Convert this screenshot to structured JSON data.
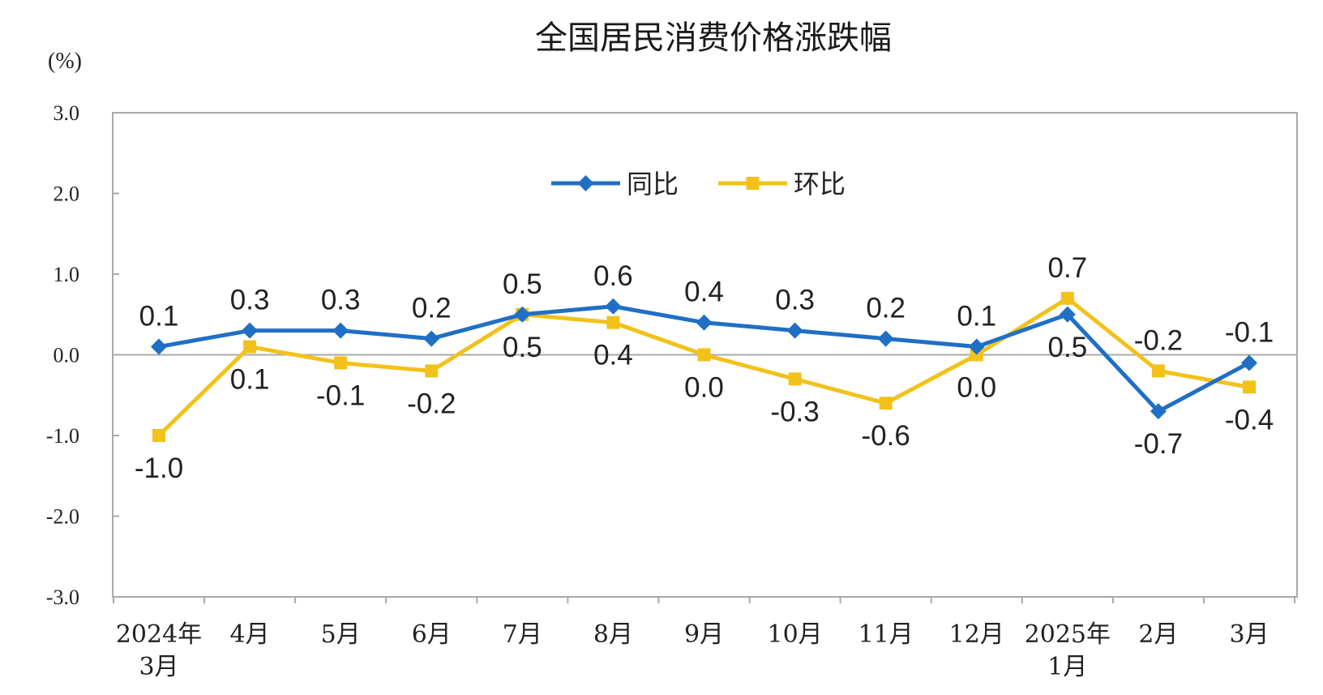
{
  "chart_data": {
    "type": "line",
    "title": "全国居民消费价格涨跌幅",
    "unit_label": "(%)",
    "ylim": [
      -3.0,
      3.0
    ],
    "y_ticks": [
      "3.0",
      "2.0",
      "1.0",
      "0.0",
      "-1.0",
      "-2.0",
      "-3.0"
    ],
    "y_tick_values": [
      3,
      2,
      1,
      0,
      -1,
      -2,
      -3
    ],
    "categories": [
      [
        "2024年",
        "3月"
      ],
      [
        "4月"
      ],
      [
        "5月"
      ],
      [
        "6月"
      ],
      [
        "7月"
      ],
      [
        "8月"
      ],
      [
        "9月"
      ],
      [
        "10月"
      ],
      [
        "11月"
      ],
      [
        "12月"
      ],
      [
        "2025年",
        "1月"
      ],
      [
        "2月"
      ],
      [
        "3月"
      ]
    ],
    "series": [
      {
        "name": "同比",
        "color": "#1f6fc5",
        "marker": "diamond",
        "values": [
          0.1,
          0.3,
          0.3,
          0.2,
          0.5,
          0.6,
          0.4,
          0.3,
          0.2,
          0.1,
          0.5,
          -0.7,
          -0.1
        ],
        "labels": [
          "0.1",
          "0.3",
          "0.3",
          "0.2",
          "0.5",
          "0.6",
          "0.4",
          "0.3",
          "0.2",
          "0.1",
          "0.5",
          "-0.7",
          "-0.1"
        ]
      },
      {
        "name": "环比",
        "color": "#f2c21b",
        "marker": "square",
        "values": [
          -1.0,
          0.1,
          -0.1,
          -0.2,
          0.5,
          0.4,
          0.0,
          -0.3,
          -0.6,
          0.0,
          0.7,
          -0.2,
          -0.4
        ],
        "labels": [
          "-1.0",
          "0.1",
          "-0.1",
          "-0.2",
          "0.5",
          "0.4",
          "0.0",
          "-0.3",
          "-0.6",
          "0.0",
          "0.7",
          "-0.2",
          "-0.4"
        ]
      }
    ],
    "legend_position": "top-center",
    "grid": false
  }
}
